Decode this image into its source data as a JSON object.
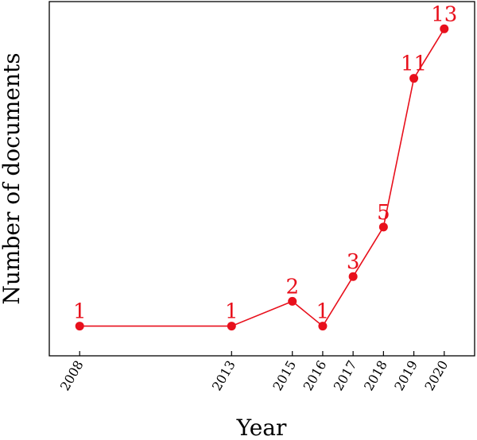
{
  "chart_data": {
    "type": "line",
    "x": [
      2008,
      2013,
      2015,
      2016,
      2017,
      2018,
      2019,
      2020
    ],
    "series": [
      {
        "values": [
          1,
          1,
          2,
          1,
          3,
          5,
          11,
          13
        ],
        "data_labels": [
          "1",
          "1",
          "2",
          "1",
          "3",
          "5",
          "11",
          "13"
        ]
      }
    ],
    "tick_labels": [
      "2008",
      "2013",
      "2015",
      "2016",
      "2017",
      "2018",
      "2019",
      "2020"
    ],
    "xlabel": "Year",
    "ylabel": "Number of documents",
    "xlim": [
      2007,
      2021
    ],
    "ylim": [
      -0.2,
      14.1
    ],
    "y_ticks_shown": false,
    "grid": false,
    "legend": "none",
    "colors": {
      "series": "#e8101c",
      "axes": "#000000"
    }
  }
}
